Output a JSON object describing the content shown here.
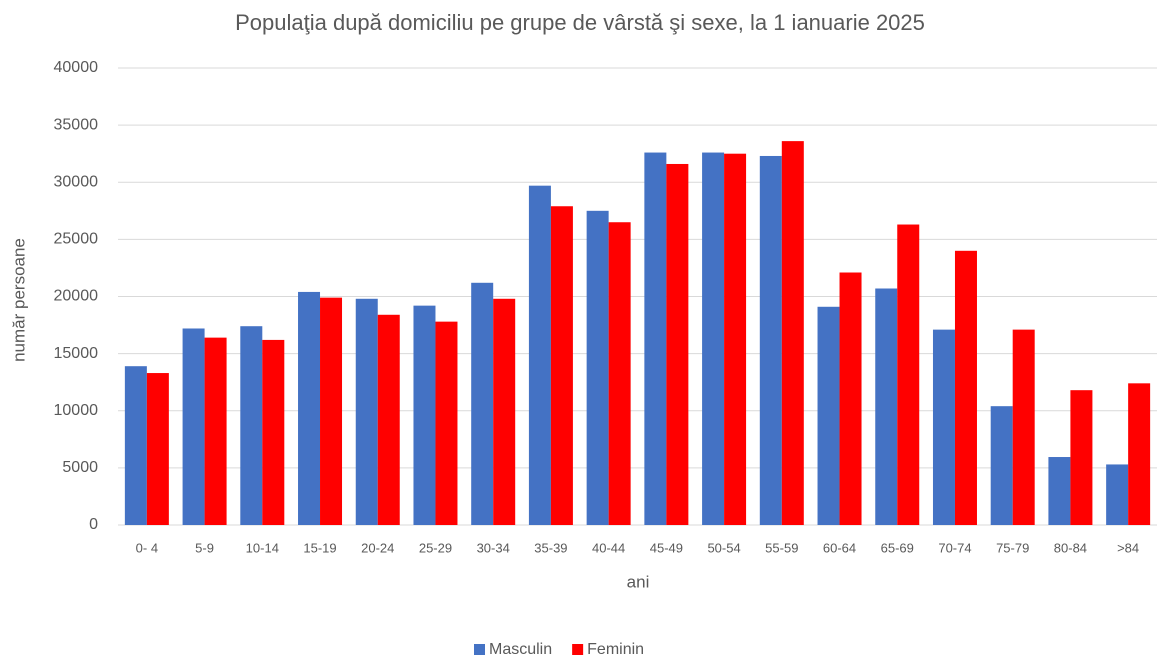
{
  "chart_data": {
    "type": "bar",
    "title": "Populaţia după domiciliu pe grupe de vârstă şi sexe, la 1 ianuarie 2025",
    "xlabel": "ani",
    "ylabel": "număr persoane",
    "categories": [
      "0- 4",
      "5-9",
      "10-14",
      "15-19",
      "20-24",
      "25-29",
      "30-34",
      "35-39",
      "40-44",
      "45-49",
      "50-54",
      "55-59",
      "60-64",
      "65-69",
      "70-74",
      "75-79",
      "80-84",
      ">84"
    ],
    "series": [
      {
        "name": "Masculin",
        "color": "#4472c4",
        "values": [
          13900,
          17200,
          17400,
          20400,
          19800,
          19200,
          21200,
          29700,
          27500,
          32600,
          32600,
          32300,
          19100,
          20700,
          17100,
          10400,
          5950,
          5300
        ]
      },
      {
        "name": "Feminin",
        "color": "#ff0000",
        "values": [
          13300,
          16400,
          16200,
          19900,
          18400,
          17800,
          19800,
          27900,
          26500,
          31600,
          32500,
          33600,
          22100,
          26300,
          24000,
          17100,
          11800,
          12400
        ]
      }
    ],
    "ylim": [
      0,
      40000
    ],
    "yticks": [
      0,
      5000,
      10000,
      15000,
      20000,
      25000,
      30000,
      35000,
      40000
    ],
    "grid": true,
    "legend": "bottom"
  }
}
